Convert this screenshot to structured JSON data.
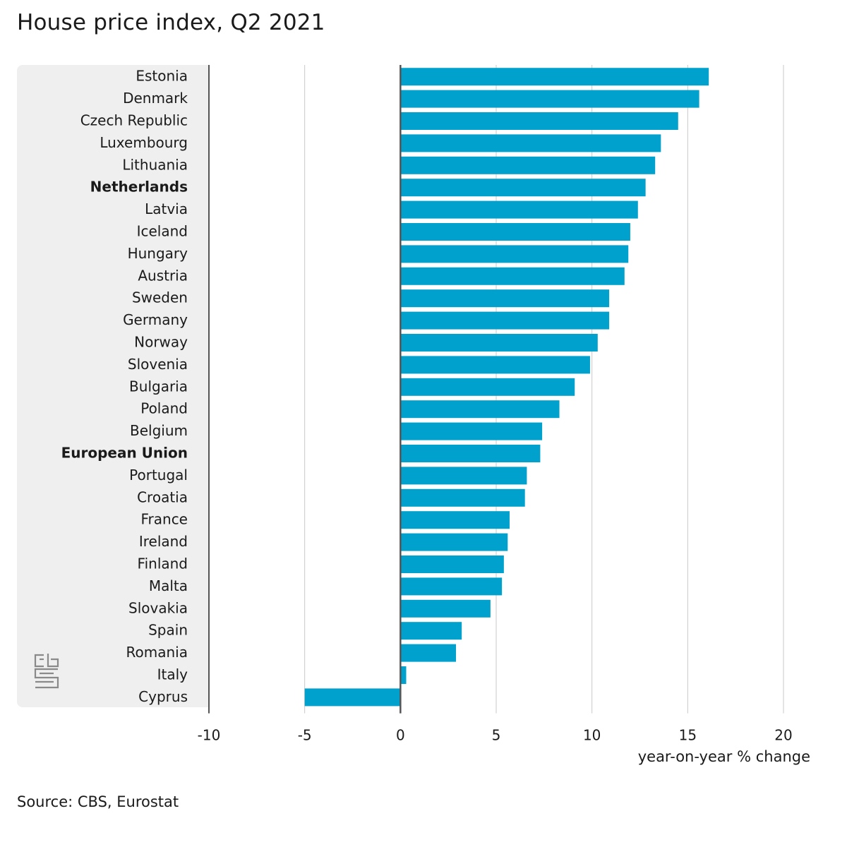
{
  "header": {
    "title": "House price index, Q2 2021"
  },
  "footer": {
    "source": "Source: CBS, Eurostat"
  },
  "logo": {
    "icon": "cbs-logo-icon"
  },
  "colors": {
    "bar": "#00A1CD",
    "grid": "#c8c8c8",
    "axis": "#555555",
    "panel": "#efefef"
  },
  "chart_data": {
    "type": "bar",
    "orientation": "horizontal",
    "title": "House price index, Q2 2021",
    "xlabel": "year-on-year % change",
    "ylabel": "",
    "xlim": [
      -10,
      20
    ],
    "xticks": [
      -10,
      -5,
      0,
      5,
      10,
      15,
      20
    ],
    "grid": true,
    "categories": [
      "Estonia",
      "Denmark",
      "Czech Republic",
      "Luxembourg",
      "Lithuania",
      "Netherlands",
      "Latvia",
      "Iceland",
      "Hungary",
      "Austria",
      "Sweden",
      "Germany",
      "Norway",
      "Slovenia",
      "Bulgaria",
      "Poland",
      "Belgium",
      "European Union",
      "Portugal",
      "Croatia",
      "France",
      "Ireland",
      "Finland",
      "Malta",
      "Slovakia",
      "Spain",
      "Romania",
      "Italy",
      "Cyprus"
    ],
    "values": [
      16.1,
      15.6,
      14.5,
      13.6,
      13.3,
      12.8,
      12.4,
      12.0,
      11.9,
      11.7,
      10.9,
      10.9,
      10.3,
      9.9,
      9.1,
      8.3,
      7.4,
      7.3,
      6.6,
      6.5,
      5.7,
      5.6,
      5.4,
      5.3,
      4.7,
      3.2,
      2.9,
      0.3,
      -5.0
    ],
    "bold_categories": [
      "Netherlands",
      "European Union"
    ]
  }
}
